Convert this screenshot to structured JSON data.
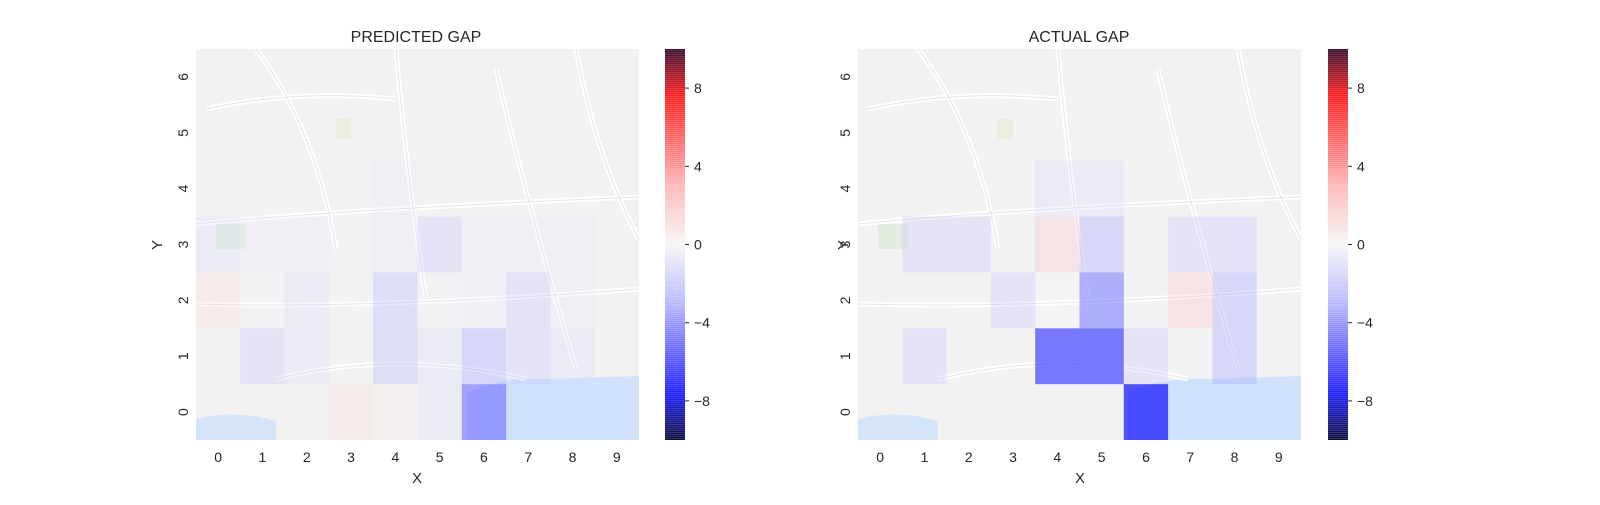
{
  "chart_data": [
    {
      "type": "heatmap",
      "title": "PREDICTED GAP",
      "xlabel": "X",
      "ylabel": "Y",
      "x_ticks": [
        "0",
        "1",
        "2",
        "3",
        "4",
        "5",
        "6",
        "7",
        "8",
        "9"
      ],
      "y_ticks": [
        "0",
        "1",
        "2",
        "3",
        "4",
        "5",
        "6"
      ],
      "background": "street map",
      "colormap": "seismic",
      "colorbar": {
        "range": [
          -10,
          10
        ],
        "ticks": [
          "8",
          "4",
          "0",
          "−4",
          "−8"
        ]
      },
      "cells": [
        {
          "x": 6,
          "y": 0,
          "v": -5.5
        },
        {
          "x": 3,
          "y": 0,
          "v": 1.5
        },
        {
          "x": 4,
          "y": 0,
          "v": 0.8
        },
        {
          "x": 5,
          "y": 0,
          "v": -1.5
        },
        {
          "x": 1,
          "y": 1,
          "v": -2
        },
        {
          "x": 2,
          "y": 1,
          "v": -1.5
        },
        {
          "x": 4,
          "y": 1,
          "v": -2.5
        },
        {
          "x": 5,
          "y": 1,
          "v": -1.5
        },
        {
          "x": 6,
          "y": 1,
          "v": -3
        },
        {
          "x": 7,
          "y": 1,
          "v": -2
        },
        {
          "x": 8,
          "y": 1,
          "v": -1.5
        },
        {
          "x": 0,
          "y": 2,
          "v": 1.5
        },
        {
          "x": 1,
          "y": 2,
          "v": -0.5
        },
        {
          "x": 2,
          "y": 2,
          "v": -1.5
        },
        {
          "x": 3,
          "y": 2,
          "v": -0.5
        },
        {
          "x": 4,
          "y": 2,
          "v": -2.5
        },
        {
          "x": 5,
          "y": 2,
          "v": -0.5
        },
        {
          "x": 6,
          "y": 2,
          "v": -1
        },
        {
          "x": 7,
          "y": 2,
          "v": -2
        },
        {
          "x": 8,
          "y": 2,
          "v": -1
        },
        {
          "x": 0,
          "y": 3,
          "v": -1.5
        },
        {
          "x": 1,
          "y": 3,
          "v": -1
        },
        {
          "x": 2,
          "y": 3,
          "v": -1
        },
        {
          "x": 3,
          "y": 3,
          "v": -0.5
        },
        {
          "x": 4,
          "y": 3,
          "v": -1
        },
        {
          "x": 5,
          "y": 3,
          "v": -2
        },
        {
          "x": 6,
          "y": 3,
          "v": -1
        },
        {
          "x": 7,
          "y": 3,
          "v": -1
        },
        {
          "x": 8,
          "y": 3,
          "v": -1
        },
        {
          "x": 1,
          "y": 4,
          "v": 0.5
        },
        {
          "x": 4,
          "y": 4,
          "v": -1
        }
      ]
    },
    {
      "type": "heatmap",
      "title": "ACTUAL GAP",
      "xlabel": "X",
      "ylabel": "Y",
      "x_ticks": [
        "0",
        "1",
        "2",
        "3",
        "4",
        "5",
        "6",
        "7",
        "8",
        "9"
      ],
      "y_ticks": [
        "0",
        "1",
        "2",
        "3",
        "4",
        "5",
        "6"
      ],
      "background": "street map",
      "colormap": "seismic",
      "colorbar": {
        "range": [
          -10,
          10
        ],
        "ticks": [
          "8",
          "4",
          "0",
          "−4",
          "−8"
        ]
      },
      "cells": [
        {
          "x": 6,
          "y": 0,
          "v": -9
        },
        {
          "x": 1,
          "y": 1,
          "v": -2
        },
        {
          "x": 4,
          "y": 1,
          "v": -7
        },
        {
          "x": 5,
          "y": 1,
          "v": -7
        },
        {
          "x": 6,
          "y": 1,
          "v": -2
        },
        {
          "x": 8,
          "y": 1,
          "v": -3
        },
        {
          "x": 3,
          "y": 2,
          "v": -2
        },
        {
          "x": 4,
          "y": 2,
          "v": 0
        },
        {
          "x": 5,
          "y": 2,
          "v": -5
        },
        {
          "x": 7,
          "y": 2,
          "v": 2
        },
        {
          "x": 8,
          "y": 2,
          "v": -3
        },
        {
          "x": 1,
          "y": 3,
          "v": -2
        },
        {
          "x": 2,
          "y": 3,
          "v": -2
        },
        {
          "x": 4,
          "y": 3,
          "v": 2
        },
        {
          "x": 5,
          "y": 3,
          "v": -3
        },
        {
          "x": 7,
          "y": 3,
          "v": -2
        },
        {
          "x": 8,
          "y": 3,
          "v": -2
        },
        {
          "x": 4,
          "y": 4,
          "v": -1.5
        },
        {
          "x": 5,
          "y": 4,
          "v": -1.5
        }
      ]
    }
  ]
}
